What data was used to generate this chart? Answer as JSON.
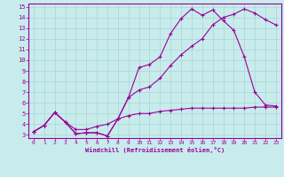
{
  "xlabel": "Windchill (Refroidissement éolien,°C)",
  "background_color": "#c8ecec",
  "line_color": "#990099",
  "grid_color": "#aad4d4",
  "xlim": [
    -0.5,
    23.5
  ],
  "ylim": [
    2.7,
    15.3
  ],
  "xticks": [
    0,
    1,
    2,
    3,
    4,
    5,
    6,
    7,
    8,
    9,
    10,
    11,
    12,
    13,
    14,
    15,
    16,
    17,
    18,
    19,
    20,
    21,
    22,
    23
  ],
  "yticks": [
    3,
    4,
    5,
    6,
    7,
    8,
    9,
    10,
    11,
    12,
    13,
    14,
    15
  ],
  "line1_x": [
    0,
    1,
    2,
    3,
    4,
    5,
    6,
    7,
    8,
    9,
    10,
    11,
    12,
    13,
    14,
    15,
    16,
    17,
    18,
    19,
    20,
    21,
    22,
    23
  ],
  "line1_y": [
    3.3,
    3.9,
    5.1,
    4.2,
    3.1,
    3.2,
    3.2,
    2.9,
    4.5,
    6.5,
    9.3,
    9.6,
    10.3,
    12.5,
    13.9,
    14.8,
    14.2,
    14.7,
    13.7,
    12.8,
    10.3,
    7.0,
    5.8,
    5.7
  ],
  "line2_x": [
    0,
    1,
    2,
    3,
    4,
    5,
    6,
    7,
    8,
    9,
    10,
    11,
    12,
    13,
    14,
    15,
    16,
    17,
    18,
    19,
    20,
    21,
    22,
    23
  ],
  "line2_y": [
    3.3,
    3.9,
    5.1,
    4.2,
    3.1,
    3.2,
    3.2,
    2.9,
    4.5,
    6.5,
    7.2,
    7.5,
    8.3,
    9.5,
    10.5,
    11.3,
    12.0,
    13.3,
    14.0,
    14.3,
    14.8,
    14.4,
    13.8,
    13.3
  ],
  "line3_x": [
    0,
    1,
    2,
    3,
    4,
    5,
    6,
    7,
    8,
    9,
    10,
    11,
    12,
    13,
    14,
    15,
    16,
    17,
    18,
    19,
    20,
    21,
    22,
    23
  ],
  "line3_y": [
    3.3,
    3.9,
    5.1,
    4.2,
    3.5,
    3.5,
    3.8,
    4.0,
    4.5,
    4.8,
    5.0,
    5.0,
    5.2,
    5.3,
    5.4,
    5.5,
    5.5,
    5.5,
    5.5,
    5.5,
    5.5,
    5.6,
    5.6,
    5.6
  ]
}
